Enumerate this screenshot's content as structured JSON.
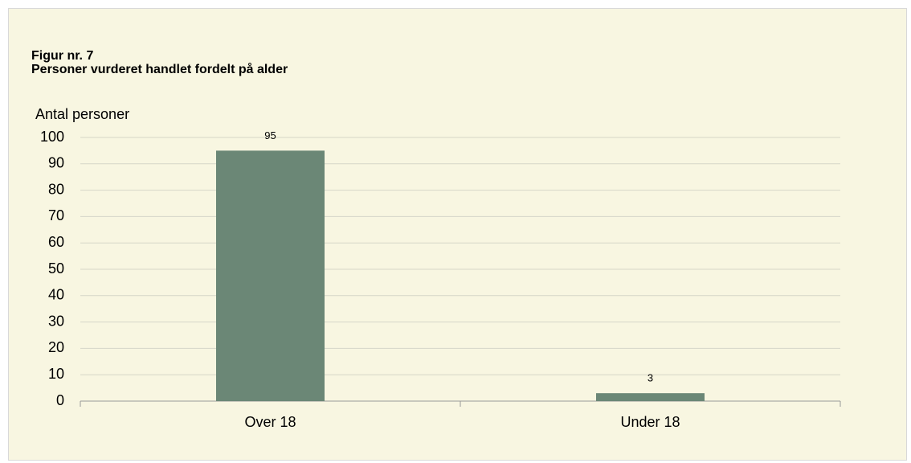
{
  "chart_data": {
    "type": "bar",
    "title": "Figur nr. 7",
    "subtitle": "Personer vurderet handlet fordelt på alder",
    "y_axis_label": "Antal personer",
    "categories": [
      "Over 18",
      "Under 18"
    ],
    "values": [
      95,
      3
    ],
    "color": "#6b8776",
    "ylim": [
      0,
      100
    ],
    "yticks": [
      0,
      10,
      20,
      30,
      40,
      50,
      60,
      70,
      80,
      90,
      100
    ],
    "grid": true
  }
}
